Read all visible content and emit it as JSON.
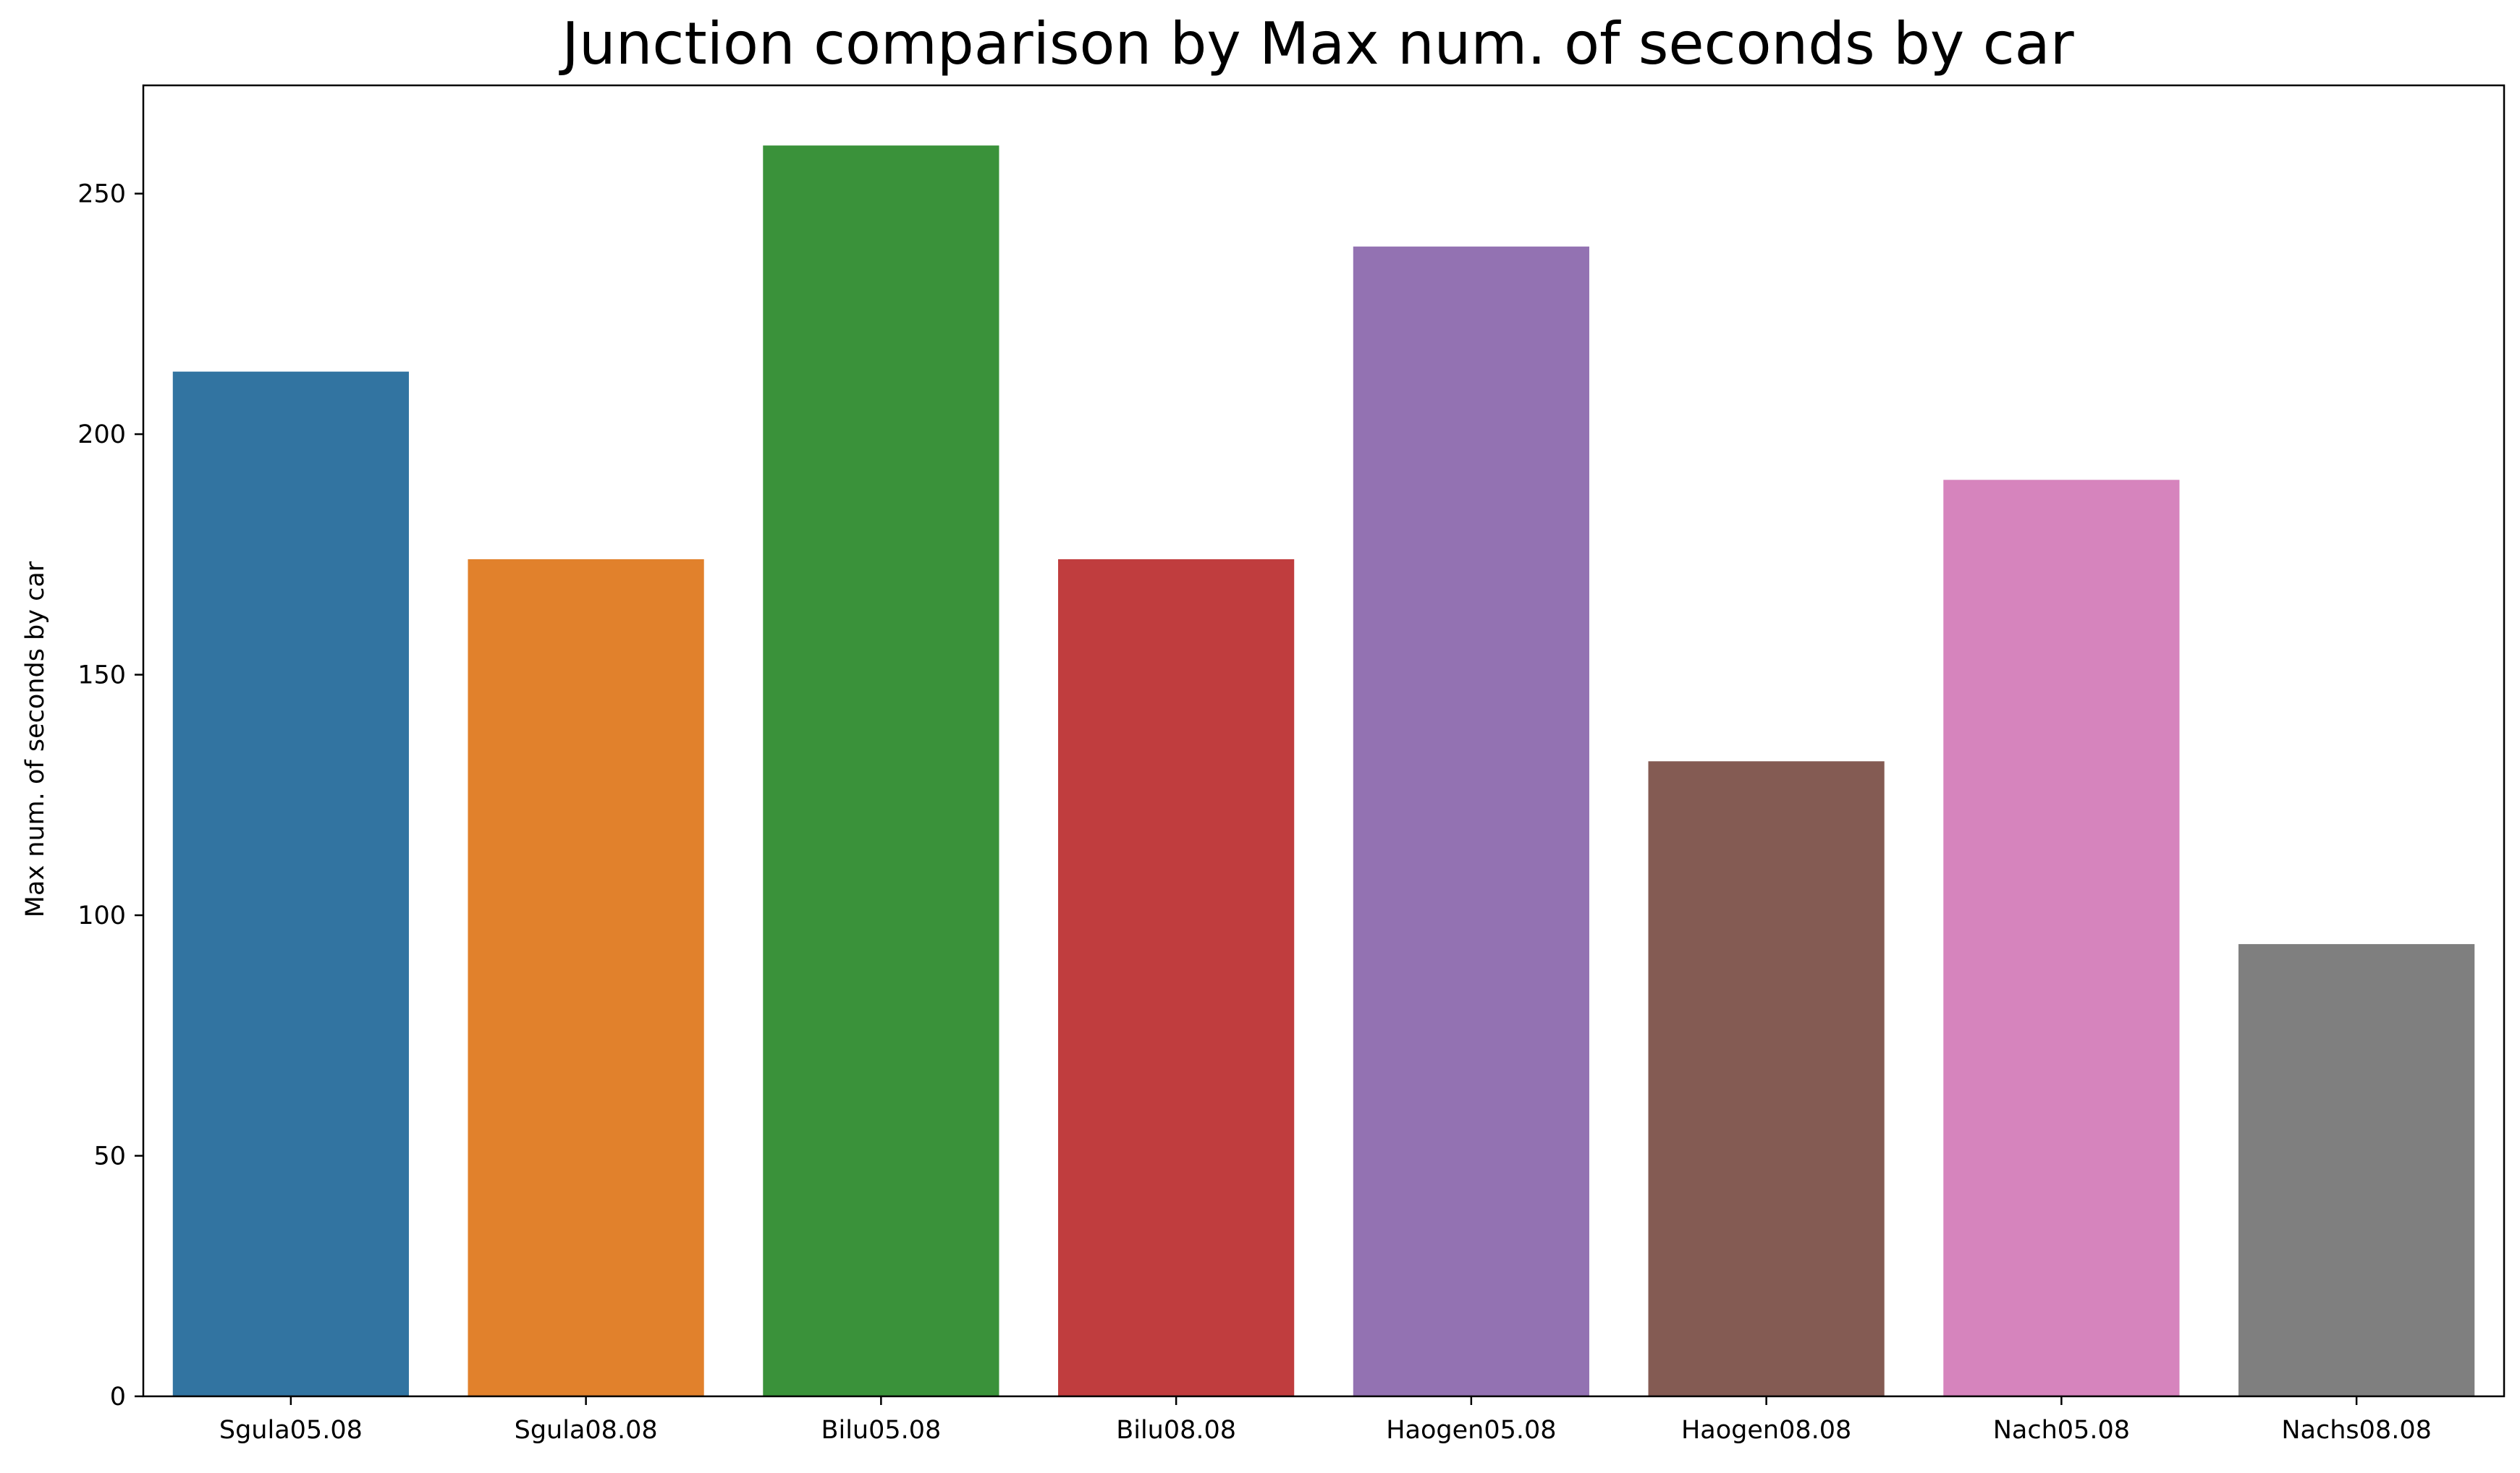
{
  "chart_data": {
    "type": "bar",
    "title": "Junction comparison by Max num. of seconds by car",
    "xlabel": "",
    "ylabel": "Max num. of seconds by car",
    "categories": [
      "Sgula05.08",
      "Sgula08.08",
      "Bilu05.08",
      "Bilu08.08",
      "Haogen05.08",
      "Haogen08.08",
      "Nach05.08",
      "Nachs08.08"
    ],
    "values": [
      213,
      174,
      260,
      174,
      239,
      132,
      190.5,
      94
    ],
    "colors": [
      "#3274a1",
      "#e1812c",
      "#3a923a",
      "#c03d3e",
      "#9372b2",
      "#845b53",
      "#d684bd",
      "#7f7f7f"
    ],
    "ylim": [
      0,
      272.5
    ],
    "yticks": [
      0,
      50,
      100,
      150,
      200,
      250
    ],
    "grid": false,
    "legend": "none"
  }
}
